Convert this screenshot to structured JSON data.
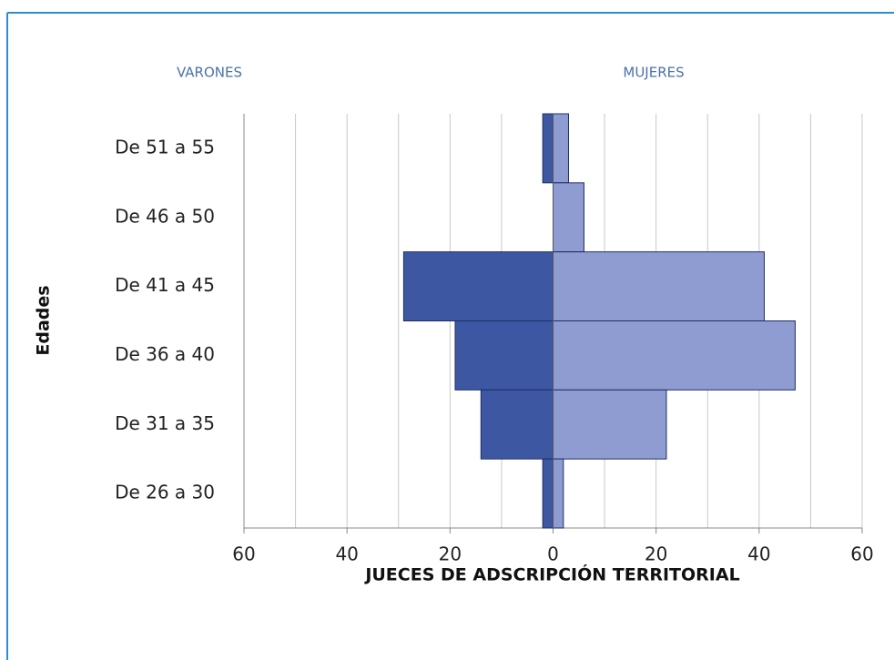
{
  "chart_data": {
    "type": "pyramid",
    "x_label": "JUECES DE ADSCRIPCIÓN TERRITORIAL",
    "y_label": "Edades",
    "categories": [
      "De 51 a 55",
      "De 46 a 50",
      "De 41 a 45",
      "De 36 a 40",
      "De 31 a 35",
      "De 26 a 30"
    ],
    "series": [
      {
        "name": "VARONES",
        "side": "left",
        "color": "#3d57a3",
        "values": [
          2,
          0,
          29,
          19,
          14,
          2
        ]
      },
      {
        "name": "MUJERES",
        "side": "right",
        "color": "#8e9cd2",
        "values": [
          3,
          6,
          41,
          47,
          22,
          2
        ]
      }
    ],
    "xlim": [
      -60,
      60
    ],
    "xticks": [
      {
        "value": -60,
        "label": "60"
      },
      {
        "value": -40,
        "label": "40"
      },
      {
        "value": -20,
        "label": "20"
      },
      0,
      20,
      40,
      60
    ],
    "minor_xticks": [
      -50,
      -30,
      -10,
      10,
      30,
      50
    ],
    "grid": true
  }
}
